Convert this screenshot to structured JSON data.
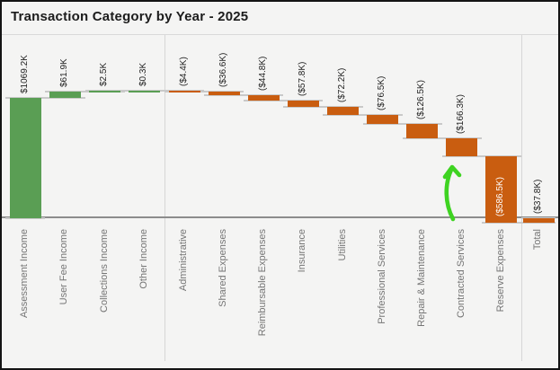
{
  "window": {
    "title": "Transaction Category by Year - 2025"
  },
  "chart_data": {
    "type": "waterfall",
    "title": "Transaction Category by Year - 2025",
    "categories": [
      "Assessment Income",
      "User Fee Income",
      "Collections Income",
      "Other Income",
      "Administrative",
      "Shared Expenses",
      "Reimbursable Expenses",
      "Insurance",
      "Utilities",
      "Professional Services",
      "Repair & Maintenance",
      "Contracted Services",
      "Reserve Expenses",
      "Total"
    ],
    "values_thousands": [
      1069.2,
      61.9,
      2.5,
      0.3,
      -4.4,
      -36.6,
      -44.8,
      -57.8,
      -72.2,
      -76.5,
      -126.5,
      -166.3,
      -586.5,
      -37.8
    ],
    "kinds": [
      "income",
      "income",
      "income",
      "income",
      "expense",
      "expense",
      "expense",
      "expense",
      "expense",
      "expense",
      "expense",
      "expense",
      "expense",
      "total"
    ],
    "bar_labels": [
      "$1069.2K",
      "$61.9K",
      "$2.5K",
      "$0.3K",
      "($4.4K)",
      "($36.6K)",
      "($44.8K)",
      "($57.8K)",
      "($72.2K)",
      "($76.5K)",
      "($126.5K)",
      "($166.3K)",
      "($586.5K)",
      "($37.8K)"
    ],
    "label_inside_index": 12,
    "section_dividers_after": [
      "Other Income",
      "Reserve Expenses"
    ],
    "ylim_thousands": [
      -40,
      1140
    ],
    "legend": "none",
    "grid": "off",
    "colors": {
      "income": "#5a9e54",
      "expense": "#c95d10",
      "connector": "#c9c9c9",
      "axis_line": "#8c8c8c",
      "divider": "#d6d6d6",
      "value_label_text": "#1f1f1f",
      "inside_label_text": "#ffffff",
      "category_text": "#757575",
      "annotation_arrow": "#3ed321"
    },
    "annotation": {
      "type": "arrow",
      "points_at": "Contracted Services",
      "direction": "up"
    }
  }
}
